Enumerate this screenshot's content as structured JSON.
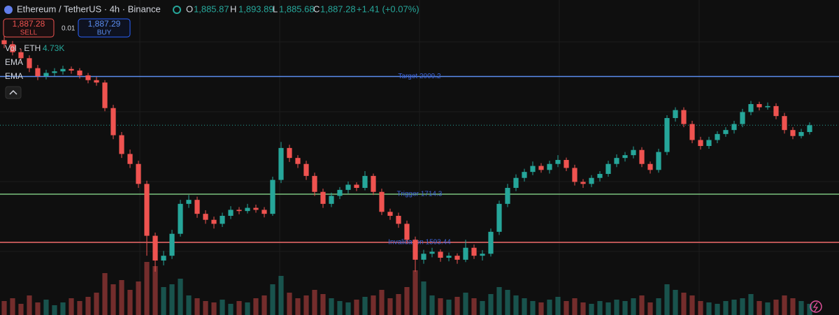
{
  "header": {
    "symbol": "Ethereum / TetherUS · 4h · Binance",
    "ohlc": [
      {
        "letter": "O",
        "value": "1,885.87"
      },
      {
        "letter": "H",
        "value": "1,893.89"
      },
      {
        "letter": "L",
        "value": "1,885.68"
      },
      {
        "letter": "C",
        "value": "1,887.28"
      }
    ],
    "change": "+1.41 (+0.07%)"
  },
  "order": {
    "sell_price": "1,887.28",
    "sell_label": "SELL",
    "quantity": "0.01",
    "buy_price": "1,887.29",
    "buy_label": "BUY"
  },
  "indicators": {
    "volume_label": "Vol · ETH",
    "volume_value": "4.73K",
    "ema": [
      "EMA",
      "EMA"
    ]
  },
  "price_chart": {
    "type": "candlestick",
    "ylim": [
      1411.5,
      2200.8
    ],
    "up_color": "#26a69a",
    "down_color": "#ef5350",
    "levels": [
      {
        "label": "Target 2009.2",
        "price": 2009.2,
        "color": "#5b8def"
      },
      {
        "label": "Trigger 1714.3",
        "price": 1714.3,
        "color": "#7cc47f"
      },
      {
        "label": "Invalidation 1593.44",
        "price": 1593.44,
        "color": "#f26b6b"
      }
    ],
    "candles": [
      [
        2100,
        2112,
        2080,
        2090
      ],
      [
        2090,
        2098,
        2062,
        2070
      ],
      [
        2070,
        2078,
        2045,
        2055
      ],
      [
        2055,
        2062,
        2020,
        2030
      ],
      [
        2030,
        2038,
        2000,
        2010
      ],
      [
        2010,
        2026,
        2002,
        2018
      ],
      [
        2018,
        2030,
        2010,
        2022
      ],
      [
        2022,
        2036,
        2014,
        2028
      ],
      [
        2028,
        2034,
        2016,
        2024
      ],
      [
        2024,
        2030,
        2004,
        2012
      ],
      [
        2012,
        2018,
        1992,
        2000
      ],
      [
        2000,
        2008,
        1986,
        1994
      ],
      [
        1994,
        2000,
        1922,
        1930
      ],
      [
        1930,
        1938,
        1852,
        1862
      ],
      [
        1862,
        1870,
        1805,
        1815
      ],
      [
        1815,
        1826,
        1780,
        1790
      ],
      [
        1790,
        1798,
        1730,
        1740
      ],
      [
        1740,
        1748,
        1560,
        1610
      ],
      [
        1610,
        1618,
        1520,
        1548
      ],
      [
        1548,
        1572,
        1536,
        1560
      ],
      [
        1560,
        1625,
        1552,
        1615
      ],
      [
        1615,
        1700,
        1608,
        1690
      ],
      [
        1690,
        1712,
        1680,
        1700
      ],
      [
        1700,
        1708,
        1655,
        1665
      ],
      [
        1665,
        1674,
        1640,
        1650
      ],
      [
        1650,
        1658,
        1628,
        1640
      ],
      [
        1640,
        1668,
        1632,
        1660
      ],
      [
        1660,
        1684,
        1652,
        1675
      ],
      [
        1675,
        1682,
        1664,
        1672
      ],
      [
        1672,
        1690,
        1666,
        1680
      ],
      [
        1680,
        1688,
        1668,
        1675
      ],
      [
        1675,
        1682,
        1656,
        1665
      ],
      [
        1665,
        1758,
        1660,
        1750
      ],
      [
        1750,
        1845,
        1742,
        1830
      ],
      [
        1830,
        1838,
        1795,
        1805
      ],
      [
        1805,
        1812,
        1780,
        1790
      ],
      [
        1790,
        1798,
        1750,
        1760
      ],
      [
        1760,
        1768,
        1710,
        1720
      ],
      [
        1720,
        1728,
        1680,
        1690
      ],
      [
        1690,
        1718,
        1682,
        1710
      ],
      [
        1710,
        1732,
        1702,
        1725
      ],
      [
        1725,
        1746,
        1716,
        1738
      ],
      [
        1738,
        1744,
        1722,
        1730
      ],
      [
        1730,
        1772,
        1724,
        1760
      ],
      [
        1760,
        1766,
        1712,
        1720
      ],
      [
        1720,
        1728,
        1662,
        1670
      ],
      [
        1670,
        1678,
        1650,
        1660
      ],
      [
        1660,
        1668,
        1630,
        1640
      ],
      [
        1640,
        1648,
        1590,
        1600
      ],
      [
        1600,
        1608,
        1520,
        1550
      ],
      [
        1550,
        1575,
        1540,
        1565
      ],
      [
        1565,
        1580,
        1556,
        1570
      ],
      [
        1570,
        1576,
        1545,
        1555
      ],
      [
        1555,
        1568,
        1546,
        1560
      ],
      [
        1560,
        1566,
        1540,
        1550
      ],
      [
        1550,
        1600,
        1544,
        1580
      ],
      [
        1580,
        1588,
        1552,
        1560
      ],
      [
        1560,
        1574,
        1548,
        1565
      ],
      [
        1565,
        1628,
        1558,
        1620
      ],
      [
        1620,
        1698,
        1612,
        1690
      ],
      [
        1690,
        1740,
        1682,
        1730
      ],
      [
        1730,
        1764,
        1722,
        1755
      ],
      [
        1755,
        1778,
        1746,
        1770
      ],
      [
        1770,
        1796,
        1762,
        1785
      ],
      [
        1785,
        1792,
        1768,
        1775
      ],
      [
        1775,
        1798,
        1766,
        1790
      ],
      [
        1790,
        1812,
        1782,
        1800
      ],
      [
        1800,
        1806,
        1772,
        1780
      ],
      [
        1780,
        1788,
        1736,
        1745
      ],
      [
        1745,
        1752,
        1730,
        1740
      ],
      [
        1740,
        1762,
        1732,
        1755
      ],
      [
        1755,
        1772,
        1746,
        1765
      ],
      [
        1765,
        1798,
        1758,
        1790
      ],
      [
        1790,
        1814,
        1782,
        1805
      ],
      [
        1805,
        1820,
        1796,
        1812
      ],
      [
        1812,
        1834,
        1804,
        1825
      ],
      [
        1825,
        1832,
        1782,
        1790
      ],
      [
        1790,
        1796,
        1766,
        1775
      ],
      [
        1775,
        1828,
        1768,
        1820
      ],
      [
        1820,
        1912,
        1812,
        1905
      ],
      [
        1905,
        1932,
        1896,
        1925
      ],
      [
        1925,
        1932,
        1882,
        1890
      ],
      [
        1890,
        1898,
        1842,
        1850
      ],
      [
        1850,
        1858,
        1826,
        1835
      ],
      [
        1835,
        1858,
        1828,
        1850
      ],
      [
        1850,
        1872,
        1842,
        1865
      ],
      [
        1865,
        1882,
        1858,
        1875
      ],
      [
        1875,
        1898,
        1866,
        1890
      ],
      [
        1890,
        1928,
        1882,
        1920
      ],
      [
        1920,
        1948,
        1912,
        1940
      ],
      [
        1940,
        1946,
        1924,
        1932
      ],
      [
        1932,
        1944,
        1926,
        1935
      ],
      [
        1935,
        1942,
        1902,
        1910
      ],
      [
        1910,
        1918,
        1866,
        1875
      ],
      [
        1875,
        1882,
        1852,
        1860
      ],
      [
        1860,
        1878,
        1854,
        1870
      ],
      [
        1870,
        1894,
        1864,
        1887
      ]
    ],
    "volume_lim": [
      0,
      40
    ],
    "volumes": [
      10,
      12,
      8,
      14,
      9,
      11,
      7,
      9,
      12,
      10,
      13,
      16,
      30,
      22,
      25,
      18,
      24,
      38,
      35,
      20,
      22,
      26,
      14,
      12,
      10,
      9,
      11,
      8,
      10,
      9,
      12,
      14,
      22,
      28,
      16,
      12,
      14,
      18,
      15,
      12,
      10,
      9,
      11,
      13,
      14,
      18,
      12,
      15,
      20,
      32,
      24,
      14,
      12,
      11,
      13,
      16,
      12,
      10,
      15,
      20,
      18,
      14,
      12,
      10,
      9,
      11,
      13,
      10,
      12,
      9,
      8,
      10,
      9,
      11,
      10,
      12,
      14,
      9,
      12,
      22,
      18,
      16,
      14,
      10,
      9,
      8,
      10,
      11,
      12,
      15,
      10,
      9,
      11,
      14,
      12,
      10,
      8
    ]
  }
}
